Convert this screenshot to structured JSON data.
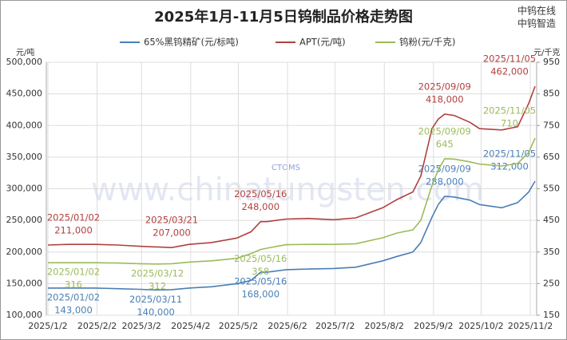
{
  "chart_data": {
    "type": "line",
    "title": "2025年1月-11月5日钨制品价格走势图",
    "brand": [
      "中钨在线",
      "中钨智造"
    ],
    "watermark": "www.chinatungsten.com",
    "logo": "CTOMS",
    "y_label": "元/吨",
    "y2_label": "元/千克",
    "x": [
      "2025/1/2",
      "2025/1/15",
      "2025/2/1",
      "2025/2/15",
      "2025/3/1",
      "2025/3/11",
      "2025/3/12",
      "2025/3/21",
      "2025/4/1",
      "2025/4/15",
      "2025/5/1",
      "2025/5/10",
      "2025/5/16",
      "2025/5/20",
      "2025/6/1",
      "2025/6/15",
      "2025/7/1",
      "2025/7/15",
      "2025/8/1",
      "2025/8/10",
      "2025/8/20",
      "2025/8/25",
      "2025/9/1",
      "2025/9/5",
      "2025/9/9",
      "2025/9/15",
      "2025/9/25",
      "2025/10/1",
      "2025/10/15",
      "2025/10/25",
      "2025/11/1",
      "2025/11/5"
    ],
    "xlim": [
      "2025/1/1",
      "2025/11/6"
    ],
    "xticks": [
      "2025/1/2",
      "2025/2/2",
      "2025/3/2",
      "2025/4/2",
      "2025/5/2",
      "2025/6/2",
      "2025/7/2",
      "2025/8/2",
      "2025/9/2",
      "2025/10/2",
      "2025/11/2"
    ],
    "ylim": [
      100000,
      500000
    ],
    "yticks": [
      {
        "value": 100000,
        "label": "100,000"
      },
      {
        "value": 150000,
        "label": "150,000"
      },
      {
        "value": 200000,
        "label": "200,000"
      },
      {
        "value": 250000,
        "label": "250,000"
      },
      {
        "value": 300000,
        "label": "300,000"
      },
      {
        "value": 350000,
        "label": "350,000"
      },
      {
        "value": 400000,
        "label": "400,000"
      },
      {
        "value": 450000,
        "label": "450,000"
      },
      {
        "value": 500000,
        "label": "500,000"
      }
    ],
    "y2lim": [
      150,
      950
    ],
    "y2ticks": [
      150,
      250,
      350,
      450,
      550,
      650,
      750,
      850,
      950
    ],
    "grid": true,
    "series": [
      {
        "name": "65%黑钨精矿(元/标吨)",
        "color": "#4a7fb5",
        "values": [
          143000,
          143000,
          143000,
          142000,
          141000,
          140000,
          140000,
          140500,
          143000,
          145000,
          150000,
          155000,
          168000,
          168000,
          172000,
          173000,
          174000,
          176000,
          186000,
          193000,
          200000,
          215000,
          255000,
          275000,
          288000,
          287000,
          282000,
          275000,
          270000,
          278000,
          295000,
          312000
        ],
        "annotations": [
          {
            "date": "2025/01/02",
            "value": 143000,
            "label": "143,000"
          },
          {
            "date": "2025/03/11",
            "value": 140000,
            "label": "140,000"
          },
          {
            "date": "2025/05/16",
            "value": 168000,
            "label": "168,000"
          },
          {
            "date": "2025/09/09",
            "value": 288000,
            "label": "288,000"
          },
          {
            "date": "2025/11/05",
            "value": 312000,
            "label": "312,000"
          }
        ]
      },
      {
        "name": "APT(元/吨)",
        "color": "#b0413e",
        "values": [
          211000,
          212000,
          212000,
          211000,
          209000,
          208000,
          208000,
          207000,
          212000,
          215000,
          222000,
          232000,
          248000,
          248000,
          252000,
          253000,
          251000,
          254000,
          270000,
          283000,
          295000,
          320000,
          395000,
          410000,
          418000,
          416000,
          405000,
          395000,
          393000,
          398000,
          435000,
          462000
        ],
        "annotations": [
          {
            "date": "2025/01/02",
            "value": 211000,
            "label": "211,000"
          },
          {
            "date": "2025/03/21",
            "value": 207000,
            "label": "207,000"
          },
          {
            "date": "2025/05/16",
            "value": 248000,
            "label": "248,000"
          },
          {
            "date": "2025/09/09",
            "value": 418000,
            "label": "418,000"
          },
          {
            "date": "2025/11/05",
            "value": 462000,
            "label": "462,000"
          }
        ]
      },
      {
        "name": "钨粉(元/千克)",
        "color": "#9bbb59",
        "axis": "y2",
        "values": [
          316,
          316,
          316,
          315,
          313,
          312,
          312,
          313,
          318,
          322,
          330,
          345,
          358,
          362,
          373,
          374,
          374,
          376,
          395,
          410,
          420,
          450,
          560,
          610,
          645,
          644,
          635,
          628,
          622,
          630,
          665,
          710
        ],
        "annotations": [
          {
            "date": "2025/01/02",
            "value": 316
          },
          {
            "date": "2025/03/12",
            "value": 312
          },
          {
            "date": "2025/05/16",
            "value": 358
          },
          {
            "date": "2025/09/09",
            "value": 645
          },
          {
            "date": "2025/11/05",
            "value": 710
          }
        ]
      }
    ]
  }
}
